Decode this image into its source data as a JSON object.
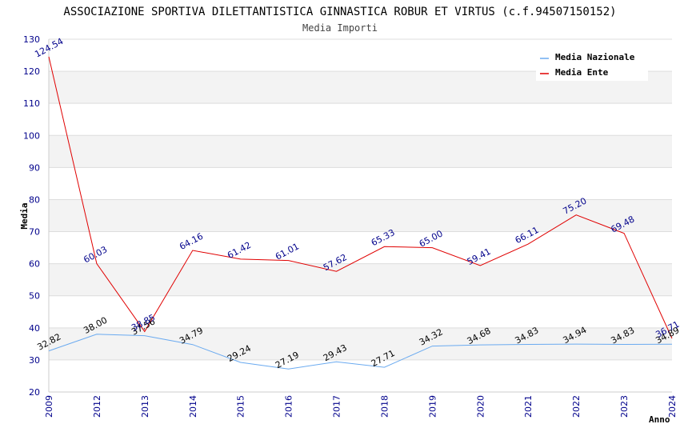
{
  "chart_data": {
    "type": "line",
    "title": "ASSOCIAZIONE SPORTIVA DILETTANTISTICA GINNASTICA ROBUR ET VIRTUS (c.f.94507150152)",
    "subtitle": "Media Importi",
    "xlabel": "Anno",
    "ylabel": "Media",
    "ylim": [
      20,
      130
    ],
    "yticks": [
      "20",
      "30",
      "40",
      "50",
      "60",
      "70",
      "80",
      "90",
      "100",
      "110",
      "120",
      "130"
    ],
    "categories": [
      "2009",
      "2012",
      "2013",
      "2014",
      "2015",
      "2016",
      "2017",
      "2018",
      "2019",
      "2020",
      "2021",
      "2022",
      "2023",
      "2024"
    ],
    "series": [
      {
        "name": "Media Nazionale",
        "color": "#6aaaf0",
        "values": [
          32.82,
          38.0,
          37.56,
          34.79,
          29.24,
          27.19,
          29.43,
          27.71,
          34.32,
          34.68,
          34.83,
          34.94,
          34.83,
          34.89
        ],
        "labels": [
          "32.82",
          "38.00",
          "37.56",
          "34.79",
          "29.24",
          "27.19",
          "29.43",
          "27.71",
          "34.32",
          "34.68",
          "34.83",
          "34.94",
          "34.83",
          "34.89"
        ]
      },
      {
        "name": "Media Ente",
        "color": "#e00000",
        "values": [
          124.54,
          60.03,
          38.85,
          64.16,
          61.42,
          61.01,
          57.62,
          65.33,
          65.0,
          59.41,
          66.11,
          75.2,
          69.48,
          36.71
        ],
        "labels": [
          "124.54",
          "60.03",
          "38.85",
          "64.16",
          "61.42",
          "61.01",
          "57.62",
          "65.33",
          "65.00",
          "59.41",
          "66.11",
          "75.20",
          "69.48",
          "36.71"
        ]
      }
    ],
    "grid": true,
    "legend": "top-right"
  }
}
